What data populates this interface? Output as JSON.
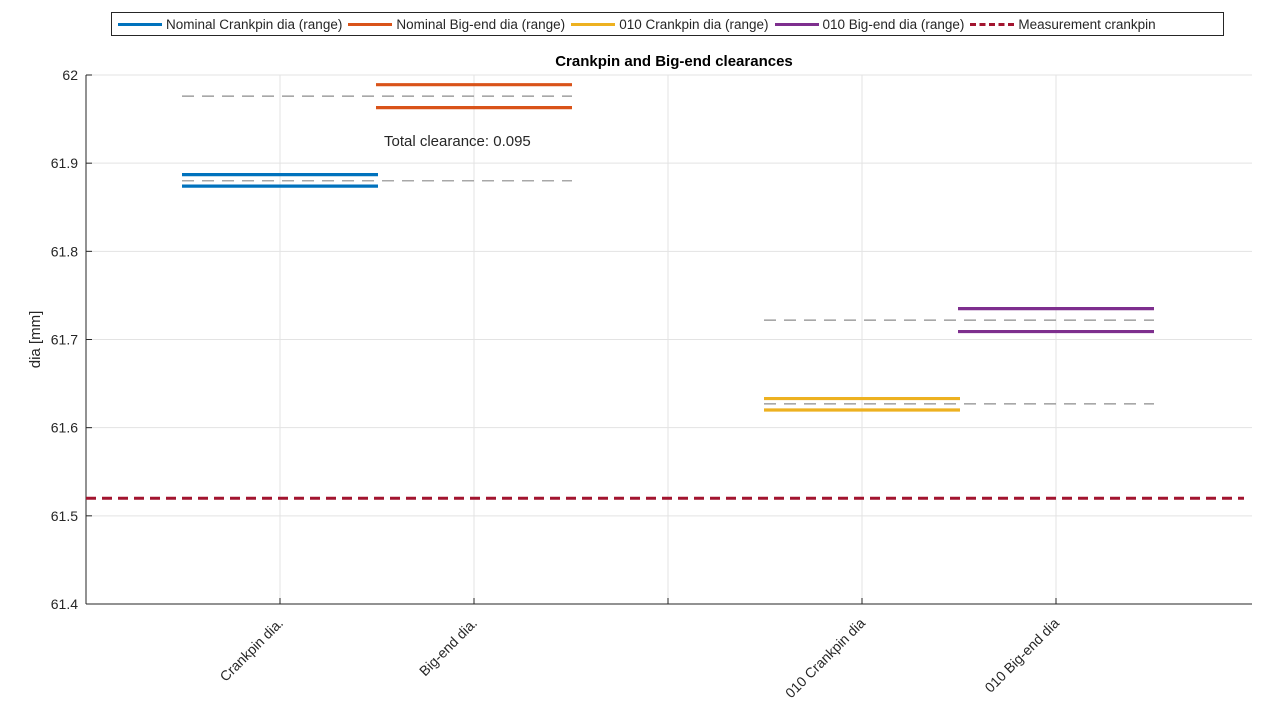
{
  "chart_data": {
    "type": "line",
    "title": "Crankpin and Big-end clearances",
    "xlabel": "",
    "ylabel": "dia [mm]",
    "ylim": [
      61.4,
      62.0
    ],
    "yticks": [
      "61.4",
      "61.5",
      "61.6",
      "61.7",
      "61.8",
      "61.9",
      "62"
    ],
    "categories": [
      "Crankpin dia.",
      "Big-end dia.",
      "",
      "010 Crankpin dia",
      "010 Big-end dia"
    ],
    "grid": true,
    "legend_placement": "top",
    "series": [
      {
        "name": "Nominal Crankpin dia (range)",
        "color": "#0072BD",
        "style": "solid",
        "category_index": 0,
        "min": 61.874,
        "max": 61.887
      },
      {
        "name": "Nominal Big-end dia (range)",
        "color": "#D95319",
        "style": "solid",
        "category_index": 1,
        "min": 61.963,
        "max": 61.989
      },
      {
        "name": "010 Crankpin dia (range)",
        "color": "#EDB120",
        "style": "solid",
        "category_index": 3,
        "min": 61.62,
        "max": 61.633
      },
      {
        "name": "010 Big-end dia (range)",
        "color": "#7E2F8E",
        "style": "solid",
        "category_index": 4,
        "min": 61.709,
        "max": 61.735
      },
      {
        "name": "Measurement crankpin",
        "color": "#A2142F",
        "style": "dashed",
        "value": 61.52
      }
    ],
    "reference_lines": [
      {
        "color": "#8c8c8c",
        "value": 61.976,
        "from_category": 0,
        "to_category": 1
      },
      {
        "color": "#8c8c8c",
        "value": 61.88,
        "from_category": 0,
        "to_category": 1
      },
      {
        "color": "#8c8c8c",
        "value": 61.722,
        "from_category": 3,
        "to_category": 4
      },
      {
        "color": "#8c8c8c",
        "value": 61.627,
        "from_category": 3,
        "to_category": 4
      }
    ],
    "annotations": [
      {
        "text": "Total clearance: 0.095",
        "x_category": 0.9,
        "y": 61.925
      }
    ]
  }
}
